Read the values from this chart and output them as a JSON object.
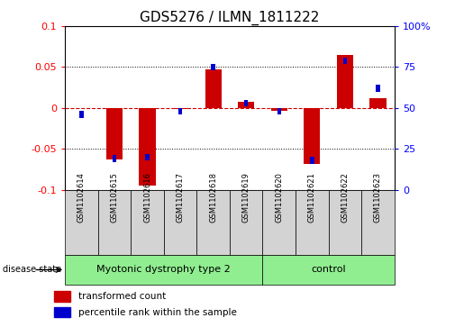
{
  "title": "GDS5276 / ILMN_1811222",
  "samples": [
    "GSM1102614",
    "GSM1102615",
    "GSM1102616",
    "GSM1102617",
    "GSM1102618",
    "GSM1102619",
    "GSM1102620",
    "GSM1102621",
    "GSM1102622",
    "GSM1102623"
  ],
  "red_values": [
    0.0,
    -0.063,
    -0.095,
    -0.001,
    0.047,
    0.008,
    -0.003,
    -0.068,
    0.065,
    0.012
  ],
  "blue_values_pct": [
    46,
    19,
    20,
    48,
    75,
    53,
    48,
    18,
    79,
    62
  ],
  "ylim_left": [
    -0.1,
    0.1
  ],
  "ylim_right": [
    0,
    100
  ],
  "yticks_left": [
    -0.1,
    -0.05,
    0,
    0.05,
    0.1
  ],
  "yticks_right": [
    0,
    25,
    50,
    75,
    100
  ],
  "group_spans": [
    {
      "start": 0,
      "end": 5,
      "label": "Myotonic dystrophy type 2"
    },
    {
      "start": 6,
      "end": 9,
      "label": "control"
    }
  ],
  "group_color": "#90EE90",
  "disease_state_label": "disease state",
  "legend_items": [
    {
      "label": "transformed count",
      "color": "#CC0000"
    },
    {
      "label": "percentile rank within the sample",
      "color": "#0000CC"
    }
  ],
  "red_bar_color": "#CC0000",
  "blue_bar_color": "#0000CC",
  "zero_line_color": "#CC0000",
  "sample_box_color": "#D3D3D3",
  "title_fontsize": 11,
  "tick_fontsize": 8,
  "sample_fontsize": 6,
  "group_fontsize": 8,
  "legend_fontsize": 7.5
}
